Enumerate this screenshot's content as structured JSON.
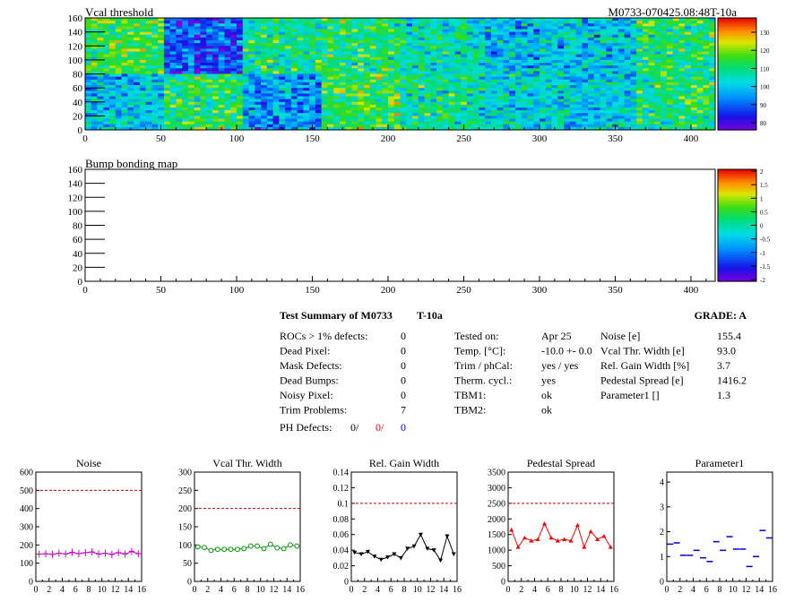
{
  "header": {
    "module_id": "M0733-070425.08:48T-10a"
  },
  "maps": [
    {
      "title": "Vcal threshold",
      "xticks": [
        0,
        50,
        100,
        150,
        200,
        250,
        300,
        350,
        400
      ],
      "yticks": [
        0,
        20,
        40,
        60,
        80,
        100,
        120,
        140,
        160
      ],
      "xlim": [
        0,
        416
      ],
      "ylim": [
        0,
        160
      ],
      "colorbar": {
        "ticks": [
          "80",
          "90",
          "100",
          "110",
          "120",
          "130"
        ],
        "range": [
          75,
          138
        ]
      },
      "roc_means": [
        [
          114,
          88,
          108,
          110,
          105,
          98,
          100,
          110
        ],
        [
          100,
          112,
          94,
          113,
          107,
          102,
          100,
          110
        ]
      ]
    },
    {
      "title": "Bump bonding map",
      "xticks": [
        0,
        50,
        100,
        150,
        200,
        250,
        300,
        350,
        400
      ],
      "yticks": [
        0,
        20,
        40,
        60,
        80,
        100,
        120,
        140,
        160
      ],
      "xlim": [
        0,
        416
      ],
      "ylim": [
        0,
        160
      ],
      "colorbar": {
        "ticks": [
          "2",
          "1.5",
          "1",
          "0.5",
          "0",
          "-0.5",
          "-1",
          "-1.5",
          "-2"
        ]
      }
    }
  ],
  "summary": {
    "title": "Test Summary of M0733",
    "title_suffix": "T-10a",
    "grade_label": "GRADE:  A",
    "left_rows": [
      {
        "label": "ROCs > 1% defects:",
        "value": "0"
      },
      {
        "label": "Dead Pixel:",
        "value": "0"
      },
      {
        "label": "Mask Defects:",
        "value": "0"
      },
      {
        "label": "Dead Bumps:",
        "value": "0"
      },
      {
        "label": "Noisy Pixel:",
        "value": "0"
      },
      {
        "label": "Trim Problems:",
        "value": "7"
      }
    ],
    "ph_defects": {
      "label": "PH Defects:",
      "v1": "0/",
      "v2": "0/",
      "v3": "0",
      "v2_color": "#ff0000",
      "v3_color": "#0000ff"
    },
    "mid_rows": [
      {
        "label": "Tested on:",
        "value": "Apr 25"
      },
      {
        "label": "Temp. [°C]:",
        "value": "-10.0 +- 0.0"
      },
      {
        "label": "Trim / phCal:",
        "value": "yes / yes"
      },
      {
        "label": "Therm. cycl.:",
        "value": "yes"
      },
      {
        "label": "TBM1:",
        "value": "ok"
      },
      {
        "label": "TBM2:",
        "value": "ok"
      }
    ],
    "right_rows": [
      {
        "label": "Noise [e]",
        "value": "155.4"
      },
      {
        "label": "Vcal Thr. Width [e]",
        "value": "93.0"
      },
      {
        "label": "Rel. Gain Width [%]",
        "value": "3.7"
      },
      {
        "label": "Pedestal Spread [e]",
        "value": "1416.2"
      },
      {
        "label": "Parameter1 []",
        "value": "1.3"
      }
    ]
  },
  "chart_data": [
    {
      "type": "line",
      "title": "Noise",
      "color": "#cc00cc",
      "marker": "plus",
      "xlim": [
        0,
        16
      ],
      "ylim": [
        0,
        600
      ],
      "cut": 500,
      "xticks": [
        0,
        2,
        4,
        6,
        8,
        10,
        12,
        14,
        16
      ],
      "yticks": [
        0,
        100,
        200,
        300,
        400,
        500,
        600
      ],
      "x": [
        0,
        1,
        2,
        3,
        4,
        5,
        6,
        7,
        8,
        9,
        10,
        11,
        12,
        13,
        14,
        15
      ],
      "y": [
        150,
        152,
        148,
        155,
        150,
        160,
        152,
        158,
        162,
        150,
        155,
        148,
        158,
        150,
        165,
        152
      ]
    },
    {
      "type": "line",
      "title": "Vcal Thr. Width",
      "color": "#009900",
      "marker": "circle",
      "xlim": [
        0,
        16
      ],
      "ylim": [
        0,
        300
      ],
      "cut": 200,
      "xticks": [
        0,
        2,
        4,
        6,
        8,
        10,
        12,
        14,
        16
      ],
      "yticks": [
        0,
        50,
        100,
        150,
        200,
        250,
        300
      ],
      "x": [
        0,
        1,
        2,
        3,
        4,
        5,
        6,
        7,
        8,
        9,
        10,
        11,
        12,
        13,
        14,
        15
      ],
      "y": [
        95,
        93,
        85,
        88,
        88,
        88,
        88,
        90,
        97,
        97,
        90,
        102,
        92,
        90,
        100,
        97
      ]
    },
    {
      "type": "line",
      "title": "Rel. Gain Width",
      "color": "#000000",
      "marker": "triangle-down",
      "xlim": [
        0,
        16
      ],
      "ylim": [
        0,
        0.14
      ],
      "cut": 0.1,
      "xticks": [
        0,
        2,
        4,
        6,
        8,
        10,
        12,
        14,
        16
      ],
      "yticks": [
        0,
        0.02,
        0.04,
        0.06,
        0.08,
        0.1,
        0.12,
        0.14
      ],
      "x": [
        0,
        1,
        2,
        3,
        4,
        5,
        6,
        7,
        8,
        9,
        10,
        11,
        12,
        13,
        14,
        15
      ],
      "y": [
        0.037,
        0.035,
        0.038,
        0.032,
        0.028,
        0.031,
        0.035,
        0.03,
        0.042,
        0.045,
        0.06,
        0.042,
        0.04,
        0.027,
        0.058,
        0.035
      ]
    },
    {
      "type": "line",
      "title": "Pedestal Spread",
      "color": "#ff0000",
      "marker": "triangle-up",
      "xlim": [
        0,
        16
      ],
      "ylim": [
        0,
        3500
      ],
      "cut": 2500,
      "xticks": [
        0,
        2,
        4,
        6,
        8,
        10,
        12,
        14,
        16
      ],
      "yticks": [
        0,
        500,
        1000,
        1500,
        2000,
        2500,
        3000,
        3500
      ],
      "x": [
        0,
        1,
        2,
        3,
        4,
        5,
        6,
        7,
        8,
        9,
        10,
        11,
        12,
        13,
        14,
        15
      ],
      "y": [
        1650,
        1100,
        1400,
        1300,
        1350,
        1850,
        1400,
        1300,
        1350,
        1300,
        1800,
        1100,
        1600,
        1350,
        1450,
        1100
      ]
    },
    {
      "type": "scatter",
      "title": "Parameter1",
      "color": "#0000cc",
      "marker": "hbar",
      "xlim": [
        0,
        16
      ],
      "ylim": [
        0,
        4.4
      ],
      "cut": null,
      "xticks": [
        0,
        2,
        4,
        6,
        8,
        10,
        12,
        14,
        16
      ],
      "yticks": [
        0,
        1,
        2,
        3,
        4
      ],
      "x": [
        0,
        1,
        2,
        3,
        4,
        5,
        6,
        7,
        8,
        9,
        10,
        11,
        12,
        13,
        14,
        15
      ],
      "y": [
        1.5,
        1.55,
        1.05,
        1.05,
        1.25,
        0.95,
        0.8,
        1.6,
        1.25,
        1.8,
        1.3,
        1.3,
        0.6,
        1.0,
        2.05,
        1.75
      ]
    }
  ]
}
